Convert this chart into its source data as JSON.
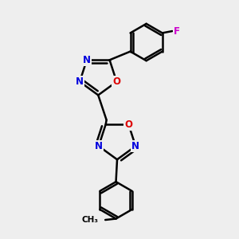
{
  "bg_color": "#eeeeee",
  "bond_color": "#000000",
  "N_color": "#0000dd",
  "O_color": "#dd0000",
  "F_color": "#cc00cc",
  "line_width": 1.8,
  "figsize": [
    3.0,
    3.0
  ],
  "dpi": 100,
  "xlim": [
    0,
    10
  ],
  "ylim": [
    0,
    10
  ]
}
